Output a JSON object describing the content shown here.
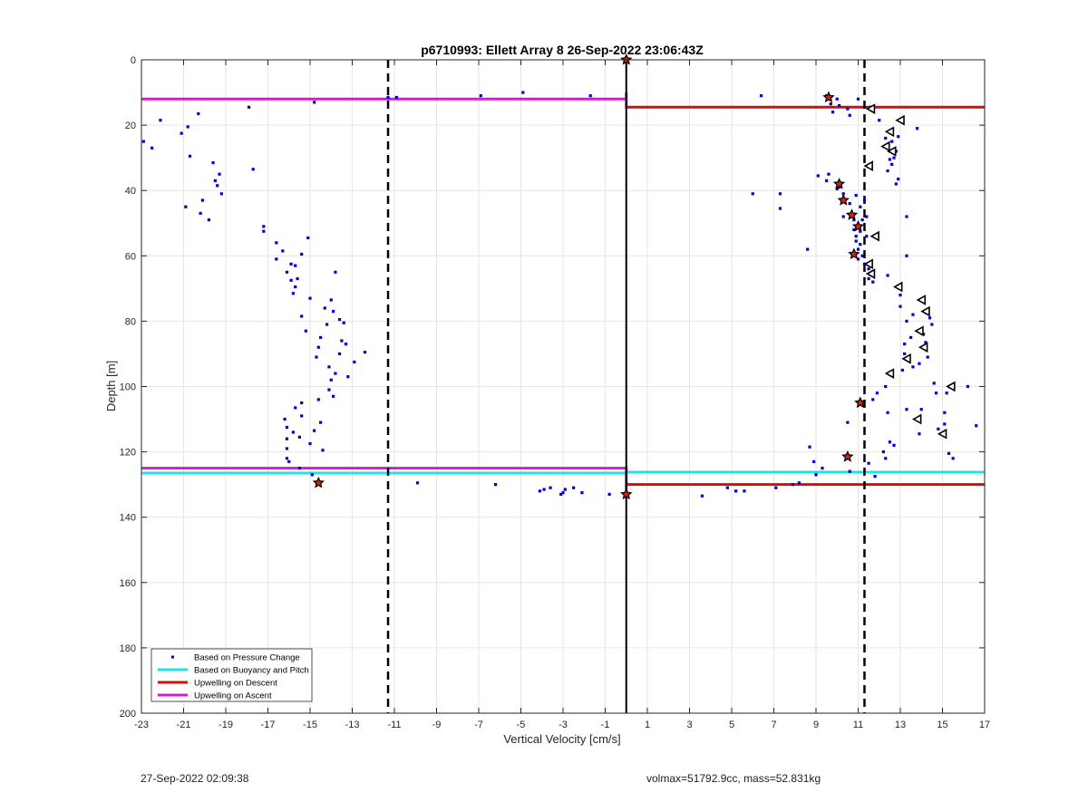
{
  "chart_data": {
    "type": "scatter",
    "title": "p6710993: Ellett Array 8 26-Sep-2022 23:06:43Z",
    "xlabel": "Vertical Velocity [cm/s]",
    "ylabel": "Depth [m]",
    "xlim": [
      -23,
      17
    ],
    "ylim": [
      0,
      200
    ],
    "y_reversed": true,
    "grid": true,
    "xticks": [
      -23,
      -21,
      -19,
      -17,
      -15,
      -13,
      -11,
      -9,
      -7,
      -5,
      -3,
      -1,
      1,
      3,
      5,
      7,
      9,
      11,
      13,
      15,
      17
    ],
    "yticks": [
      0,
      20,
      40,
      60,
      80,
      100,
      120,
      140,
      160,
      180,
      200
    ],
    "legend_position": "bottom-left",
    "legend": [
      {
        "label": "Based on Pressure Change",
        "color": "#0000cc",
        "marker": "dot"
      },
      {
        "label": "Based on Buoyancy and Pitch",
        "color": "#22e0ee",
        "marker": "line"
      },
      {
        "label": "Upwelling on Descent",
        "color": "#cc1111",
        "marker": "line"
      },
      {
        "label": "Upwelling on Ascent",
        "color": "#cc22cc",
        "marker": "line"
      }
    ],
    "series": [
      {
        "name": "Based on Pressure Change",
        "color": "#0000cc",
        "points": [
          [
            -22.9,
            25
          ],
          [
            -22.5,
            27
          ],
          [
            -22.1,
            18.5
          ],
          [
            -21.1,
            22.5
          ],
          [
            -20.9,
            45
          ],
          [
            -20.8,
            20.5
          ],
          [
            -20.7,
            29.5
          ],
          [
            -20.3,
            16.5
          ],
          [
            -20.2,
            47
          ],
          [
            -20.1,
            43
          ],
          [
            -19.8,
            49
          ],
          [
            -19.6,
            31.5
          ],
          [
            -19.5,
            37
          ],
          [
            -19.4,
            38.5
          ],
          [
            -19.3,
            35
          ],
          [
            -19.2,
            41
          ],
          [
            -17.9,
            14.5
          ],
          [
            -17.7,
            33.5
          ],
          [
            -17.2,
            51
          ],
          [
            -17.2,
            52.5
          ],
          [
            -16.6,
            56
          ],
          [
            -16.6,
            61
          ],
          [
            -16.3,
            58.5
          ],
          [
            -16.1,
            65
          ],
          [
            -15.9,
            62.5
          ],
          [
            -15.9,
            67.5
          ],
          [
            -15.8,
            71.5
          ],
          [
            -15.7,
            63
          ],
          [
            -15.7,
            69.5
          ],
          [
            -15.6,
            67
          ],
          [
            -15.4,
            59.5
          ],
          [
            -15.4,
            78.5
          ],
          [
            -15.2,
            83
          ],
          [
            -15.1,
            54.5
          ],
          [
            -15.0,
            73
          ],
          [
            -14.8,
            13
          ],
          [
            -14.7,
            91
          ],
          [
            -14.6,
            88
          ],
          [
            -14.5,
            85
          ],
          [
            -14.3,
            76
          ],
          [
            -14.2,
            81
          ],
          [
            -14.1,
            94
          ],
          [
            -14.1,
            101
          ],
          [
            -14.0,
            73.5
          ],
          [
            -14.0,
            98
          ],
          [
            -13.9,
            103
          ],
          [
            -13.9,
            77
          ],
          [
            -13.8,
            65
          ],
          [
            -13.8,
            96
          ],
          [
            -13.6,
            90
          ],
          [
            -13.6,
            79.5
          ],
          [
            -13.5,
            86
          ],
          [
            -13.4,
            80.5
          ],
          [
            -13.3,
            87
          ],
          [
            -13.2,
            97
          ],
          [
            -12.9,
            92.5
          ],
          [
            -12.4,
            89.5
          ],
          [
            -16.2,
            110
          ],
          [
            -16.1,
            112.5
          ],
          [
            -16.1,
            116
          ],
          [
            -16.1,
            119
          ],
          [
            -16.1,
            122
          ],
          [
            -16.0,
            123
          ],
          [
            -15.7,
            106.5
          ],
          [
            -15.5,
            125
          ],
          [
            -15.5,
            115.5
          ],
          [
            -15.4,
            105
          ],
          [
            -15.4,
            109
          ],
          [
            -15.0,
            117.5
          ],
          [
            -14.8,
            113.5
          ],
          [
            -14.6,
            104
          ],
          [
            -14.5,
            111
          ],
          [
            -14.4,
            119.5
          ],
          [
            -14.9,
            127
          ],
          [
            -11.3,
            11.5
          ],
          [
            -9.9,
            129.5
          ],
          [
            -6.9,
            11
          ],
          [
            -6.2,
            130
          ],
          [
            -4.9,
            10
          ],
          [
            -4.1,
            132
          ],
          [
            -3.9,
            131.5
          ],
          [
            -3.6,
            131
          ],
          [
            -3.1,
            133
          ],
          [
            -3.0,
            132.5
          ],
          [
            -2.9,
            131.5
          ],
          [
            -2.5,
            131
          ],
          [
            -2.1,
            132.5
          ],
          [
            -1.7,
            11
          ],
          [
            -0.8,
            133
          ],
          [
            3.6,
            133.5
          ],
          [
            4.8,
            131
          ],
          [
            5.2,
            132
          ],
          [
            5.6,
            132
          ],
          [
            6.0,
            41
          ],
          [
            6.4,
            11
          ],
          [
            7.1,
            131
          ],
          [
            7.3,
            41
          ],
          [
            7.3,
            45.5
          ],
          [
            7.9,
            130
          ],
          [
            8.2,
            129.5
          ],
          [
            8.6,
            58
          ],
          [
            8.7,
            118.5
          ],
          [
            8.9,
            123
          ],
          [
            9.0,
            127
          ],
          [
            9.1,
            35.5
          ],
          [
            9.3,
            125
          ],
          [
            9.5,
            11
          ],
          [
            9.5,
            37
          ],
          [
            9.6,
            35
          ],
          [
            9.7,
            13.5
          ],
          [
            9.8,
            16
          ],
          [
            10.0,
            12
          ],
          [
            10.0,
            39.5
          ],
          [
            10.1,
            39
          ],
          [
            10.1,
            14
          ],
          [
            10.3,
            48
          ],
          [
            10.3,
            41
          ],
          [
            10.5,
            111
          ],
          [
            10.5,
            15
          ],
          [
            10.6,
            17
          ],
          [
            10.6,
            44
          ],
          [
            10.6,
            126
          ],
          [
            10.7,
            47
          ],
          [
            10.8,
            49
          ],
          [
            10.8,
            52
          ],
          [
            10.9,
            54
          ],
          [
            10.9,
            55.5
          ],
          [
            10.9,
            41.5
          ],
          [
            11.0,
            12
          ],
          [
            11.0,
            58
          ],
          [
            11.0,
            61
          ],
          [
            11.1,
            45
          ],
          [
            11.1,
            52.5
          ],
          [
            11.1,
            56.5
          ],
          [
            11.2,
            49
          ],
          [
            11.2,
            60
          ],
          [
            11.3,
            43
          ],
          [
            11.3,
            62.5
          ],
          [
            11.4,
            48
          ],
          [
            11.4,
            54
          ],
          [
            11.5,
            64
          ],
          [
            11.5,
            67
          ],
          [
            11.5,
            123.5
          ],
          [
            11.6,
            14.5
          ],
          [
            11.7,
            104
          ],
          [
            11.7,
            68
          ],
          [
            11.8,
            127.5
          ],
          [
            11.9,
            102
          ],
          [
            12.0,
            18.5
          ],
          [
            12.2,
            120
          ],
          [
            12.3,
            122
          ],
          [
            12.3,
            100
          ],
          [
            12.3,
            24
          ],
          [
            12.4,
            34
          ],
          [
            12.4,
            108
          ],
          [
            12.4,
            66
          ],
          [
            12.5,
            30.5
          ],
          [
            12.5,
            117
          ],
          [
            12.6,
            22
          ],
          [
            12.6,
            32
          ],
          [
            12.6,
            25
          ],
          [
            12.7,
            30
          ],
          [
            12.7,
            118
          ],
          [
            12.8,
            38
          ],
          [
            12.8,
            28
          ],
          [
            12.9,
            36.5
          ],
          [
            12.9,
            23.5
          ],
          [
            13.0,
            75.5
          ],
          [
            13.0,
            72
          ],
          [
            13.1,
            95
          ],
          [
            13.2,
            87
          ],
          [
            13.2,
            90
          ],
          [
            13.3,
            48
          ],
          [
            13.3,
            60
          ],
          [
            13.3,
            107
          ],
          [
            13.3,
            80
          ],
          [
            13.5,
            85
          ],
          [
            13.6,
            94
          ],
          [
            13.6,
            78
          ],
          [
            13.8,
            21
          ],
          [
            13.9,
            93
          ],
          [
            13.9,
            114.5
          ],
          [
            14.0,
            107
          ],
          [
            14.1,
            84
          ],
          [
            14.2,
            86.5
          ],
          [
            14.3,
            91
          ],
          [
            14.4,
            79
          ],
          [
            14.5,
            81
          ],
          [
            14.6,
            99
          ],
          [
            14.7,
            102
          ],
          [
            14.8,
            113
          ],
          [
            15.1,
            108
          ],
          [
            15.1,
            111.5
          ],
          [
            15.2,
            102
          ],
          [
            15.3,
            120.5
          ],
          [
            15.5,
            122
          ],
          [
            16.2,
            100
          ],
          [
            16.6,
            112
          ],
          [
            -10.9,
            11.5
          ],
          [
            -15.8,
            114
          ]
        ]
      },
      {
        "name": "Based on Buoyancy and Pitch",
        "color": "#22e0ee",
        "lines": [
          {
            "x": [
              -23,
              0
            ],
            "y": [
              126.5,
              126.5
            ]
          },
          {
            "x": [
              0,
              17
            ],
            "y": [
              126.2,
              126.2
            ]
          }
        ]
      },
      {
        "name": "Upwelling on Descent",
        "color": "#cc1111",
        "lines": [
          {
            "x": [
              0,
              17
            ],
            "y": [
              14.5,
              14.5
            ]
          },
          {
            "x": [
              0,
              17
            ],
            "y": [
              130,
              130
            ]
          }
        ]
      },
      {
        "name": "Upwelling on Ascent",
        "color": "#cc22cc",
        "lines": [
          {
            "x": [
              -23,
              0
            ],
            "y": [
              12,
              12
            ]
          },
          {
            "x": [
              -23,
              0
            ],
            "y": [
              125,
              125
            ]
          },
          {
            "x": [
              0,
              0
            ],
            "y": [
              10,
              15
            ]
          },
          {
            "x": [
              0,
              0
            ],
            "y": [
              124.5,
              132
            ]
          }
        ]
      }
    ],
    "vertical_lines": [
      {
        "x": -11.3,
        "style": "dashed",
        "color": "#000000"
      },
      {
        "x": 0,
        "style": "solid",
        "color": "#000000"
      },
      {
        "x": 11.3,
        "style": "dashed",
        "color": "#000000"
      }
    ],
    "star_markers": [
      [
        0,
        0
      ],
      [
        9.6,
        11.5
      ],
      [
        10.1,
        38
      ],
      [
        10.3,
        43
      ],
      [
        10.7,
        47.5
      ],
      [
        11.0,
        51
      ],
      [
        10.8,
        59.5
      ],
      [
        11.1,
        105
      ],
      [
        10.5,
        121.5
      ],
      [
        -14.6,
        129.5
      ],
      [
        0,
        133
      ]
    ],
    "triangle_markers": [
      [
        11.6,
        15
      ],
      [
        13.0,
        18.5
      ],
      [
        12.5,
        22
      ],
      [
        12.3,
        26.5
      ],
      [
        12.6,
        28
      ],
      [
        11.5,
        32.5
      ],
      [
        11.8,
        54
      ],
      [
        11.5,
        62.5
      ],
      [
        11.6,
        65.5
      ],
      [
        12.9,
        69.5
      ],
      [
        14.0,
        73.5
      ],
      [
        14.2,
        77
      ],
      [
        13.9,
        83
      ],
      [
        14.1,
        88
      ],
      [
        13.3,
        91.5
      ],
      [
        12.5,
        96
      ],
      [
        15.4,
        100
      ],
      [
        13.8,
        110
      ],
      [
        15.0,
        114.5
      ]
    ],
    "footer_left": "27-Sep-2022 02:09:38",
    "footer_right": "volmax=51792.9cc, mass=52.831kg"
  }
}
